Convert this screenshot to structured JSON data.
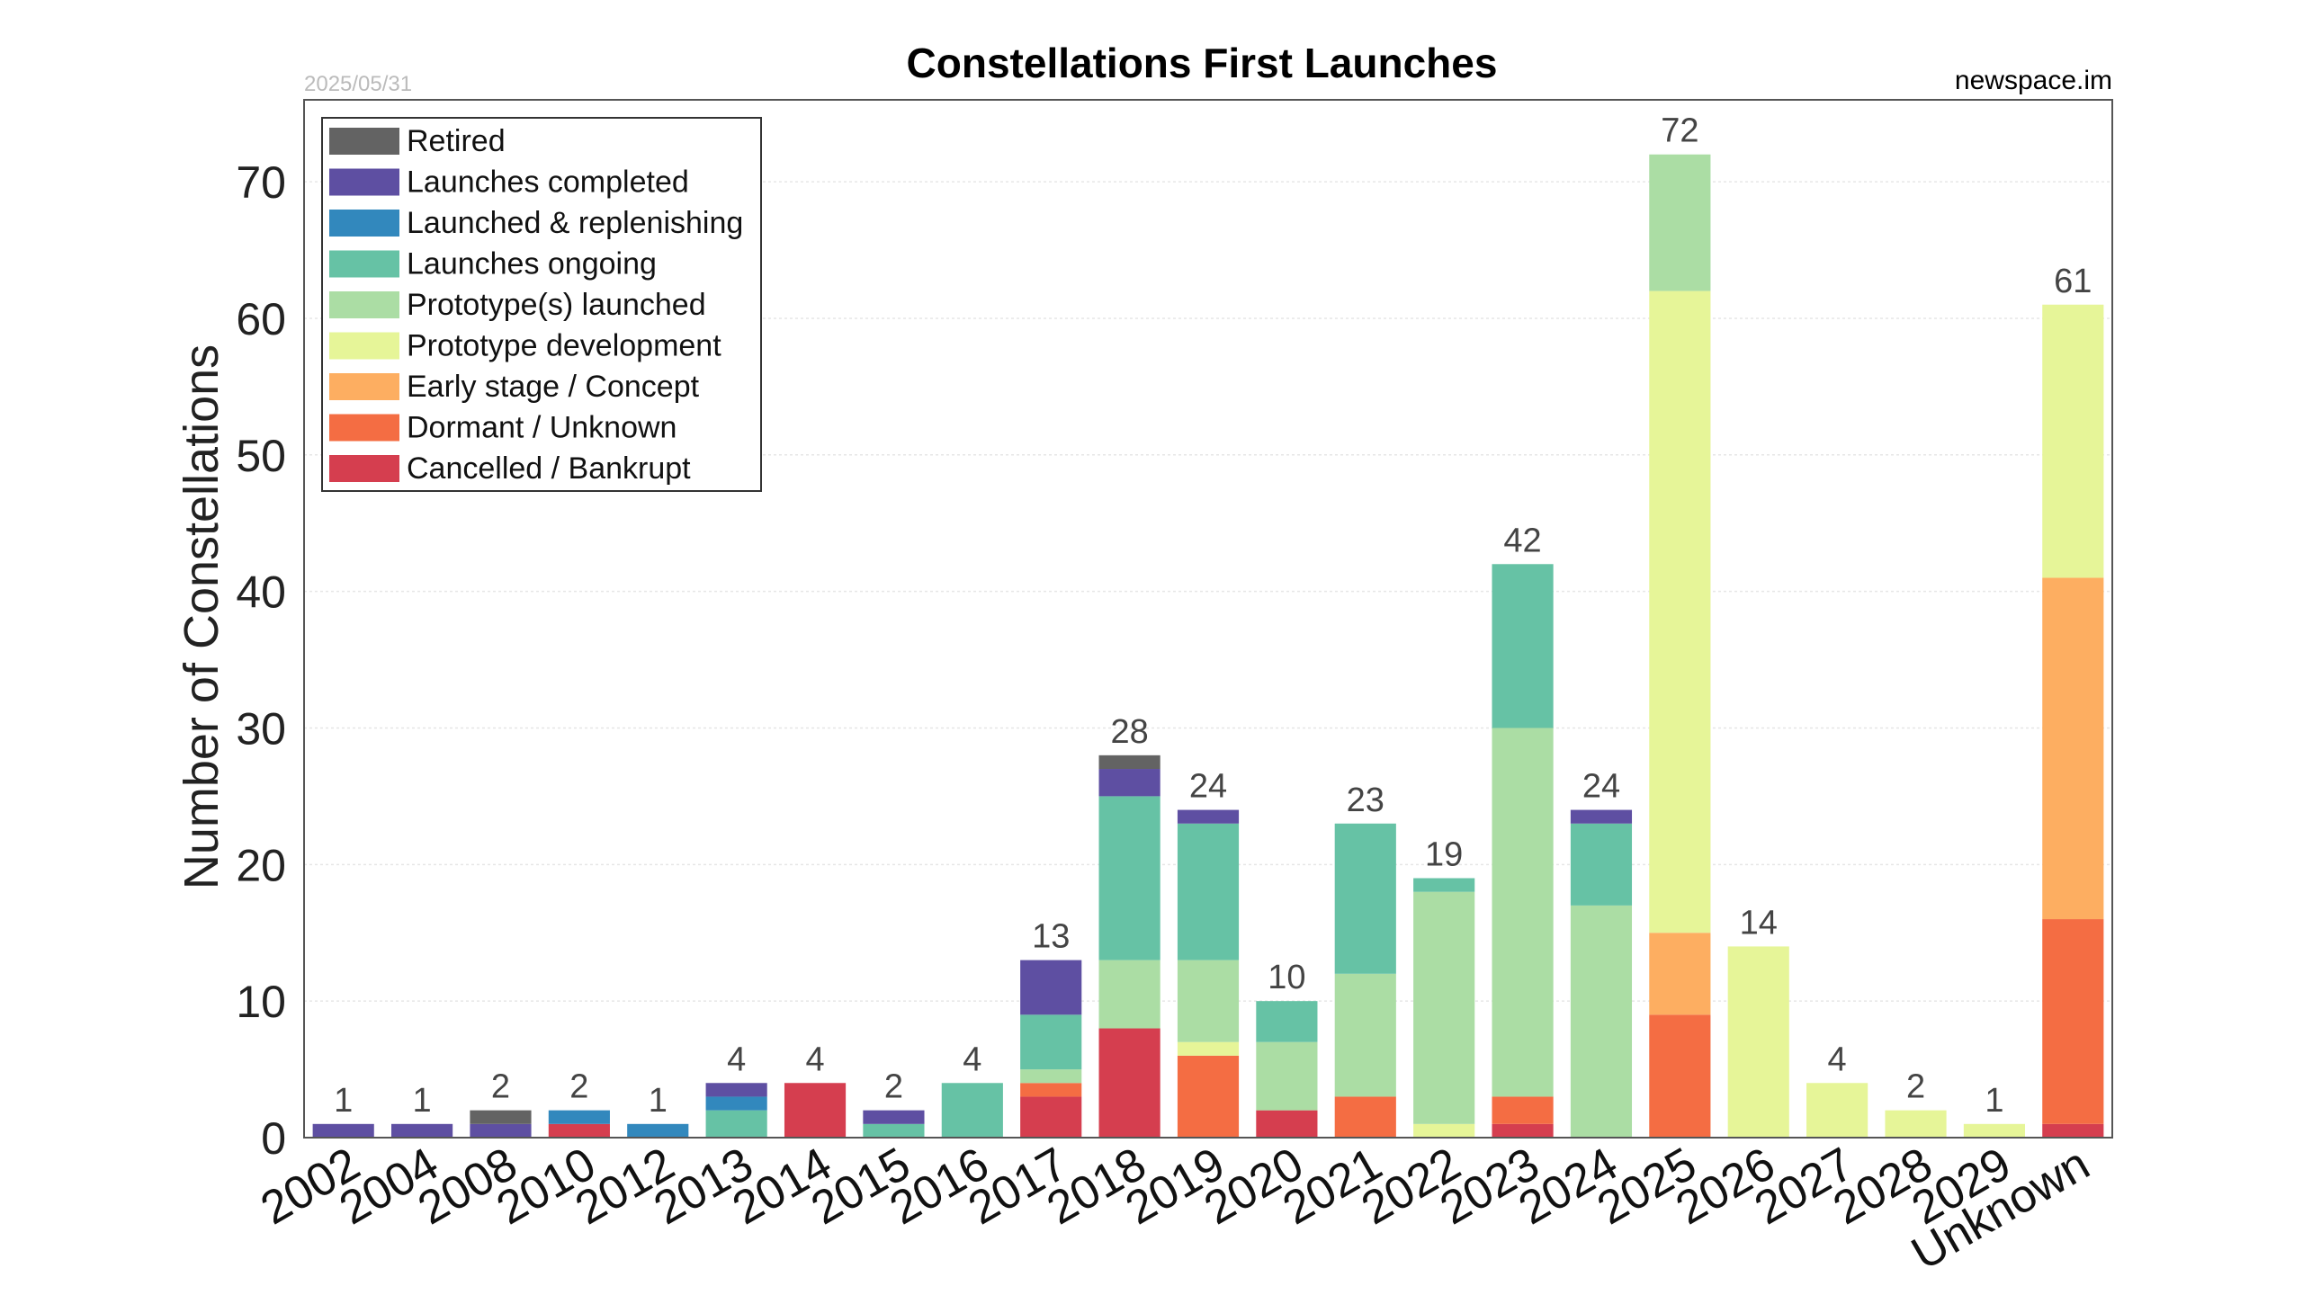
{
  "chart_data": {
    "type": "bar",
    "stacked": true,
    "title": "Constellations First Launches",
    "date_stamp": "2025/05/31",
    "source": "newspace.im",
    "xlabel": "",
    "ylabel": "Number of Constellations",
    "ylim": [
      0,
      76
    ],
    "yticks": [
      0,
      10,
      20,
      30,
      40,
      50,
      60,
      70
    ],
    "grid": true,
    "legend_position": "top-left",
    "categories": [
      "2002",
      "2004",
      "2008",
      "2010",
      "2012",
      "2013",
      "2014",
      "2015",
      "2016",
      "2017",
      "2018",
      "2019",
      "2020",
      "2021",
      "2022",
      "2023",
      "2024",
      "2025",
      "2026",
      "2027",
      "2028",
      "2029",
      "Unknown"
    ],
    "totals": [
      1,
      1,
      2,
      2,
      1,
      4,
      4,
      2,
      4,
      13,
      28,
      24,
      10,
      23,
      19,
      42,
      24,
      72,
      14,
      4,
      2,
      1,
      61
    ],
    "series": [
      {
        "name": "Cancelled / Bankrupt",
        "color": "#d53e4f",
        "values": [
          0,
          0,
          0,
          1,
          0,
          0,
          4,
          0,
          0,
          3,
          8,
          0,
          2,
          0,
          0,
          1,
          0,
          0,
          0,
          0,
          0,
          0,
          1
        ]
      },
      {
        "name": "Dormant / Unknown",
        "color": "#f46d43",
        "values": [
          0,
          0,
          0,
          0,
          0,
          0,
          0,
          0,
          0,
          1,
          0,
          6,
          0,
          3,
          0,
          2,
          0,
          9,
          0,
          0,
          0,
          0,
          15
        ]
      },
      {
        "name": "Early stage / Concept",
        "color": "#fdae61",
        "values": [
          0,
          0,
          0,
          0,
          0,
          0,
          0,
          0,
          0,
          0,
          0,
          0,
          0,
          0,
          0,
          0,
          0,
          6,
          0,
          0,
          0,
          0,
          25
        ]
      },
      {
        "name": "Prototype development",
        "color": "#e6f598",
        "values": [
          0,
          0,
          0,
          0,
          0,
          0,
          0,
          0,
          0,
          0,
          0,
          1,
          0,
          0,
          1,
          0,
          0,
          47,
          14,
          4,
          2,
          1,
          20
        ]
      },
      {
        "name": "Prototype(s) launched",
        "color": "#abdda4",
        "values": [
          0,
          0,
          0,
          0,
          0,
          0,
          0,
          0,
          0,
          1,
          5,
          6,
          5,
          9,
          17,
          27,
          17,
          10,
          0,
          0,
          0,
          0,
          0
        ]
      },
      {
        "name": "Launches ongoing",
        "color": "#66c2a5",
        "values": [
          0,
          0,
          0,
          0,
          0,
          2,
          0,
          1,
          4,
          4,
          12,
          10,
          3,
          11,
          1,
          12,
          6,
          0,
          0,
          0,
          0,
          0,
          0
        ]
      },
      {
        "name": "Launched & replenishing",
        "color": "#3288bd",
        "values": [
          0,
          0,
          0,
          1,
          1,
          1,
          0,
          0,
          0,
          0,
          0,
          0,
          0,
          0,
          0,
          0,
          0,
          0,
          0,
          0,
          0,
          0,
          0
        ]
      },
      {
        "name": "Launches completed",
        "color": "#5e4fa2",
        "values": [
          1,
          1,
          1,
          0,
          0,
          1,
          0,
          1,
          0,
          4,
          2,
          1,
          0,
          0,
          0,
          0,
          1,
          0,
          0,
          0,
          0,
          0,
          0
        ]
      },
      {
        "name": "Retired",
        "color": "#636363",
        "values": [
          0,
          0,
          1,
          0,
          0,
          0,
          0,
          0,
          0,
          0,
          1,
          0,
          0,
          0,
          0,
          0,
          0,
          0,
          0,
          0,
          0,
          0,
          0
        ]
      }
    ],
    "legend_order": [
      "Retired",
      "Launches completed",
      "Launched & replenishing",
      "Launches ongoing",
      "Prototype(s) launched",
      "Prototype development",
      "Early stage / Concept",
      "Dormant / Unknown",
      "Cancelled / Bankrupt"
    ]
  }
}
